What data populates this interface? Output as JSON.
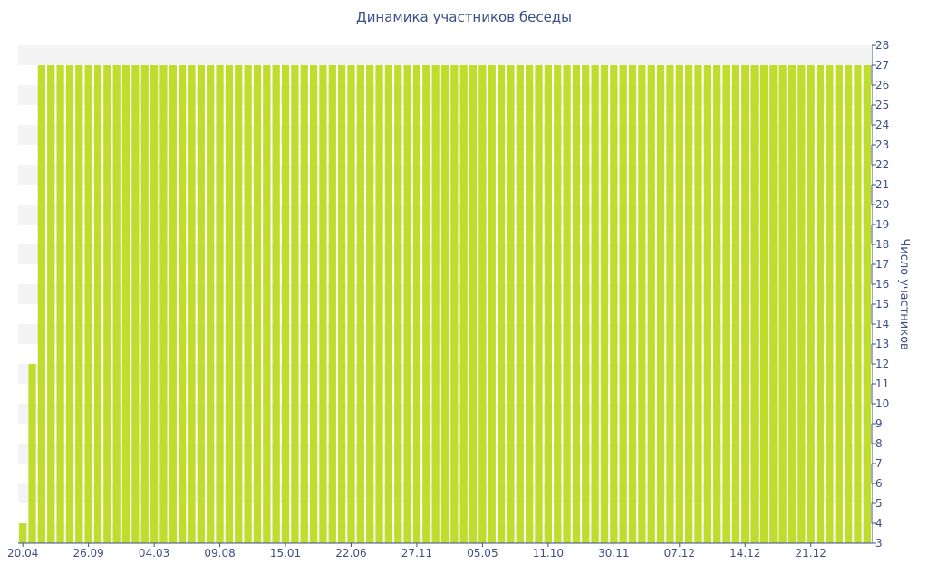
{
  "chart_data": {
    "type": "bar",
    "title": "Динамика участников беседы",
    "y_label": "Число участников",
    "categories": [
      "20.04",
      null,
      null,
      null,
      null,
      null,
      null,
      "26.09",
      null,
      null,
      null,
      null,
      null,
      null,
      "04.03",
      null,
      null,
      null,
      null,
      null,
      null,
      "09.08",
      null,
      null,
      null,
      null,
      null,
      null,
      "15.01",
      null,
      null,
      null,
      null,
      null,
      null,
      "22.06",
      null,
      null,
      null,
      null,
      null,
      null,
      "27.11",
      null,
      null,
      null,
      null,
      null,
      null,
      "05.05",
      null,
      null,
      null,
      null,
      null,
      null,
      "11.10",
      null,
      null,
      null,
      null,
      null,
      null,
      "30.11",
      null,
      null,
      null,
      null,
      null,
      null,
      "07.12",
      null,
      null,
      null,
      null,
      null,
      null,
      "14.12",
      null,
      null,
      null,
      null,
      null,
      null,
      "21.12",
      null,
      null,
      null,
      null,
      null,
      null
    ],
    "values": [
      4,
      12,
      27,
      27,
      27,
      27,
      27,
      27,
      27,
      27,
      27,
      27,
      27,
      27,
      27,
      27,
      27,
      27,
      27,
      27,
      27,
      27,
      27,
      27,
      27,
      27,
      27,
      27,
      27,
      27,
      27,
      27,
      27,
      27,
      27,
      27,
      27,
      27,
      27,
      27,
      27,
      27,
      27,
      27,
      27,
      27,
      27,
      27,
      27,
      27,
      27,
      27,
      27,
      27,
      27,
      27,
      27,
      27,
      27,
      27,
      27,
      27,
      27,
      27,
      27,
      27,
      27,
      27,
      27,
      27,
      27,
      27,
      27,
      27,
      27,
      27,
      27,
      27,
      27,
      27,
      27,
      27,
      27,
      27,
      27,
      27,
      27,
      27,
      27,
      27,
      27
    ],
    "color": "#c0dc2c",
    "ylim": [
      3,
      28
    ],
    "yticks": [
      3,
      4,
      5,
      6,
      7,
      8,
      9,
      10,
      11,
      12,
      13,
      14,
      15,
      16,
      17,
      18,
      19,
      20,
      21,
      22,
      23,
      24,
      25,
      26,
      27,
      28
    ],
    "y_axis_side": "right",
    "grid_bands": true
  }
}
